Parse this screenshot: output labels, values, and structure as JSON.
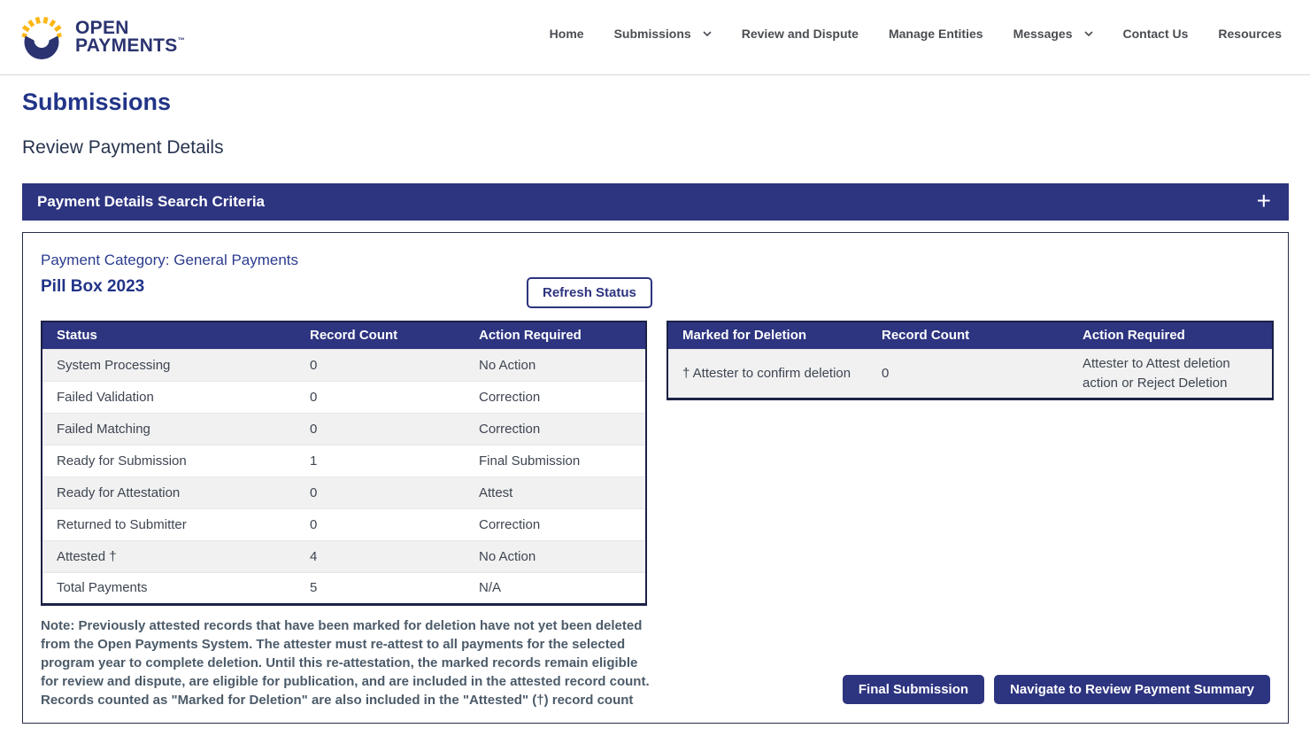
{
  "header": {
    "logo": {
      "line1": "OPEN",
      "line2": "PAYMENTS",
      "tm": "™"
    },
    "nav": [
      {
        "label": "Home",
        "dropdown": false
      },
      {
        "label": "Submissions",
        "dropdown": true
      },
      {
        "label": "Review and Dispute",
        "dropdown": false
      },
      {
        "label": "Manage Entities",
        "dropdown": false
      },
      {
        "label": "Messages",
        "dropdown": true
      },
      {
        "label": "Contact Us",
        "dropdown": false
      },
      {
        "label": "Resources",
        "dropdown": false
      }
    ]
  },
  "page": {
    "title": "Submissions",
    "subtitle": "Review Payment Details"
  },
  "search_bar": {
    "label": "Payment Details Search Criteria",
    "expand_icon": "+"
  },
  "panel": {
    "category_label": "Payment Category: General Payments",
    "entity_name": "Pill Box 2023",
    "refresh_button": "Refresh Status",
    "status_table": {
      "headers": [
        "Status",
        "Record Count",
        "Action Required"
      ],
      "rows": [
        [
          "System Processing",
          "0",
          "No Action"
        ],
        [
          "Failed Validation",
          "0",
          "Correction"
        ],
        [
          "Failed Matching",
          "0",
          "Correction"
        ],
        [
          "Ready for Submission",
          "1",
          "Final Submission"
        ],
        [
          "Ready for Attestation",
          "0",
          "Attest"
        ],
        [
          "Returned to Submitter",
          "0",
          "Correction"
        ],
        [
          "Attested †",
          "4",
          "No Action"
        ],
        [
          "Total Payments",
          "5",
          "N/A"
        ]
      ]
    },
    "deletion_table": {
      "headers": [
        "Marked for Deletion",
        "Record Count",
        "Action Required"
      ],
      "rows": [
        [
          "† Attester to confirm deletion",
          "0",
          "Attester to Attest deletion action or Reject Deletion"
        ]
      ]
    },
    "note_para1": "Note: Previously attested records that have been marked for deletion have not yet been deleted from the Open Payments System. The attester must re-attest to all payments for the selected program year to complete deletion. Until this re-attestation, the marked records remain eligible for review and dispute, are eligible for publication, and are included in the attested record count.",
    "note_para2": "Records counted as \"Marked for Deletion\" are also included in the \"Attested\" (†) record count",
    "final_submission_button": "Final Submission",
    "navigate_button": "Navigate to Review Payment Summary"
  },
  "colors": {
    "accent_indigo": "#2d3480",
    "logo_navy": "#2b3470",
    "logo_yellow": "#fdb714",
    "logo_orange": "#f9a11b",
    "heading_blue": "#213488",
    "row_alt_gray": "#f1f1f1",
    "cell_text": "#3d4551",
    "note_text": "#4c5b69"
  }
}
